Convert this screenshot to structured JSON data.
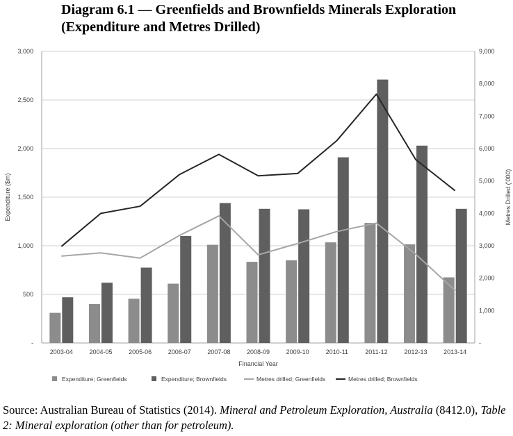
{
  "title": {
    "line1": "Diagram 6.1 — Greenfields and Brownfields Minerals Exploration",
    "line2": "(Expenditure and Metres Drilled)"
  },
  "source": {
    "prefix": "Source:  Australian Bureau of Statistics (2014).  ",
    "title_italic": "Mineral and Petroleum Exploration, Australia",
    "mid": " (8412.0), ",
    "table_italic": "Table 2:  Mineral exploration (other than for petroleum)."
  },
  "chart_data": {
    "type": "bar",
    "categories": [
      "2003-04",
      "2004-05",
      "2005-06",
      "2006-07",
      "2007-08",
      "2008-09",
      "2009-10",
      "2010-11",
      "2011-12",
      "2012-13",
      "2013-14"
    ],
    "xlabel": "Financial Year",
    "ylabel": "Expenditure ($m)",
    "y2label": "Metres Drilled ('000)",
    "ylim": [
      0,
      3000
    ],
    "y2lim": [
      0,
      9000
    ],
    "yticks": [
      "-",
      "500",
      "1,000",
      "1,500",
      "2,000",
      "2,500",
      "3,000"
    ],
    "y2ticks": [
      "-",
      "1,000",
      "2,000",
      "3,000",
      "4,000",
      "5,000",
      "6,000",
      "7,000",
      "8,000",
      "9,000"
    ],
    "grid": true,
    "legend_position": "bottom",
    "series": [
      {
        "name": "Expenditure;  Greenfields",
        "type": "bar",
        "axis": "left",
        "color": "#8c8c8c",
        "values": [
          310,
          400,
          455,
          610,
          1010,
          835,
          850,
          1035,
          1235,
          1015,
          675
        ]
      },
      {
        "name": "Expenditure;  Brownfields",
        "type": "bar",
        "axis": "left",
        "color": "#5f5f5f",
        "values": [
          470,
          620,
          775,
          1100,
          1440,
          1380,
          1375,
          1910,
          2710,
          2030,
          1380
        ]
      },
      {
        "name": "Metres drilled;  Greenfields",
        "type": "line",
        "axis": "right",
        "color": "#a6a6a6",
        "values": [
          2680,
          2780,
          2620,
          3320,
          3920,
          2720,
          3070,
          3440,
          3700,
          2740,
          1620
        ]
      },
      {
        "name": "Metres drilled; Brownfields",
        "type": "line",
        "axis": "right",
        "color": "#262626",
        "values": [
          2980,
          4000,
          4220,
          5200,
          5820,
          5160,
          5230,
          6250,
          7680,
          5660,
          4700
        ]
      }
    ]
  }
}
